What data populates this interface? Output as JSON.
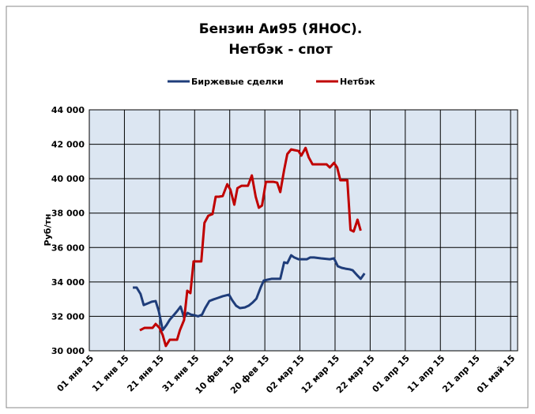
{
  "chart_data": {
    "type": "line",
    "title": "Бензин Аи95 (ЯНОС).",
    "subtitle": "Нетбэк - спот",
    "y_label": "Руб/тн",
    "legend": "top",
    "grid": true,
    "xlim": [
      0,
      122
    ],
    "xticks": [
      {
        "value": 0,
        "label": "01 янв 15"
      },
      {
        "value": 10,
        "label": "11 янв 15"
      },
      {
        "value": 20,
        "label": "21 янв 15"
      },
      {
        "value": 30,
        "label": "31 янв 15"
      },
      {
        "value": 40,
        "label": "10 фев 15"
      },
      {
        "value": 50,
        "label": "20 фев 15"
      },
      {
        "value": 60,
        "label": "02 мар 15"
      },
      {
        "value": 70,
        "label": "12 мар 15"
      },
      {
        "value": 80,
        "label": "22 мар 15"
      },
      {
        "value": 90,
        "label": "01 апр 15"
      },
      {
        "value": 100,
        "label": "11 апр 15"
      },
      {
        "value": 110,
        "label": "21 апр 15"
      },
      {
        "value": 120,
        "label": "01 май 15"
      }
    ],
    "ylim": [
      30000,
      44000
    ],
    "yticks": [
      {
        "value": 30000,
        "label": "30 000"
      },
      {
        "value": 32000,
        "label": "32 000"
      },
      {
        "value": 34000,
        "label": "34 000"
      },
      {
        "value": 36000,
        "label": "36 000"
      },
      {
        "value": 38000,
        "label": "38 000"
      },
      {
        "value": 40000,
        "label": "40 000"
      },
      {
        "value": 42000,
        "label": "42 000"
      },
      {
        "value": 44000,
        "label": "44 000"
      }
    ],
    "series": [
      {
        "name": "Биржевые сделки",
        "color": "#1f3d7a",
        "x": [
          12.4,
          13.5,
          14.6,
          15.5,
          16.6,
          17.8,
          18.9,
          19.8,
          20.9,
          22,
          22.9,
          24,
          25,
          26,
          27,
          28,
          29,
          30.1,
          31,
          32.1,
          33,
          34.2,
          35.3,
          36.6,
          38,
          39.8,
          40.7,
          41.8,
          42.9,
          44.3,
          45.4,
          46.5,
          47.6,
          48.8,
          49.7,
          50.8,
          51.9,
          53.3,
          54.4,
          55.5,
          56.4,
          57.5,
          58.4,
          59.6,
          60.9,
          62,
          62.9,
          64,
          66,
          68.5,
          69.7,
          70.8,
          71.9,
          73,
          74.2,
          75,
          76.2,
          77.3,
          78.4
        ],
        "values": [
          33670,
          33670,
          33300,
          32660,
          32750,
          32850,
          32890,
          32300,
          31200,
          31500,
          31800,
          32060,
          32300,
          32570,
          31930,
          32200,
          32100,
          32060,
          32000,
          32100,
          32480,
          32890,
          32980,
          33070,
          33170,
          33260,
          32940,
          32620,
          32480,
          32520,
          32620,
          32800,
          33030,
          33670,
          34080,
          34130,
          34180,
          34180,
          34180,
          35140,
          35090,
          35550,
          35420,
          35320,
          35320,
          35320,
          35420,
          35420,
          35370,
          35320,
          35370,
          34910,
          34820,
          34770,
          34730,
          34680,
          34410,
          34180,
          34500
        ]
      },
      {
        "name": "Нетбэк",
        "color": "#c00000",
        "x": [
          14.4,
          15.7,
          16.9,
          18,
          18.9,
          20,
          20.9,
          21.8,
          22.9,
          23.8,
          25,
          25.8,
          27,
          27.9,
          28.8,
          29.7,
          30.8,
          31.9,
          32.8,
          33.9,
          35.1,
          36,
          36.9,
          38,
          39.3,
          40.2,
          41.3,
          42.2,
          43.4,
          44.3,
          45.2,
          46.3,
          47.4,
          48.3,
          49.2,
          50.3,
          51.5,
          52.4,
          53.5,
          54.4,
          55.5,
          56.4,
          57.5,
          58.4,
          59.6,
          60.4,
          61.6,
          62.5,
          63.6,
          64.7,
          65.6,
          66.7,
          67.6,
          68.5,
          69.7,
          70.6,
          71.5,
          72.6,
          73.5,
          74.4,
          75.3,
          76.4,
          77.3
        ],
        "values": [
          31190,
          31330,
          31330,
          31330,
          31560,
          31330,
          30920,
          30280,
          30640,
          30640,
          30640,
          31190,
          31790,
          33490,
          33350,
          35190,
          35190,
          35190,
          37430,
          37850,
          37940,
          38950,
          38950,
          38990,
          39680,
          39360,
          38490,
          39450,
          39590,
          39590,
          39590,
          40190,
          38950,
          38310,
          38440,
          39820,
          39820,
          39820,
          39770,
          39220,
          40510,
          41430,
          41700,
          41660,
          41610,
          41340,
          41790,
          41240,
          40830,
          40830,
          40830,
          40830,
          40830,
          40650,
          40920,
          40650,
          39910,
          39910,
          39910,
          37020,
          36930,
          37620,
          36980
        ]
      }
    ]
  }
}
